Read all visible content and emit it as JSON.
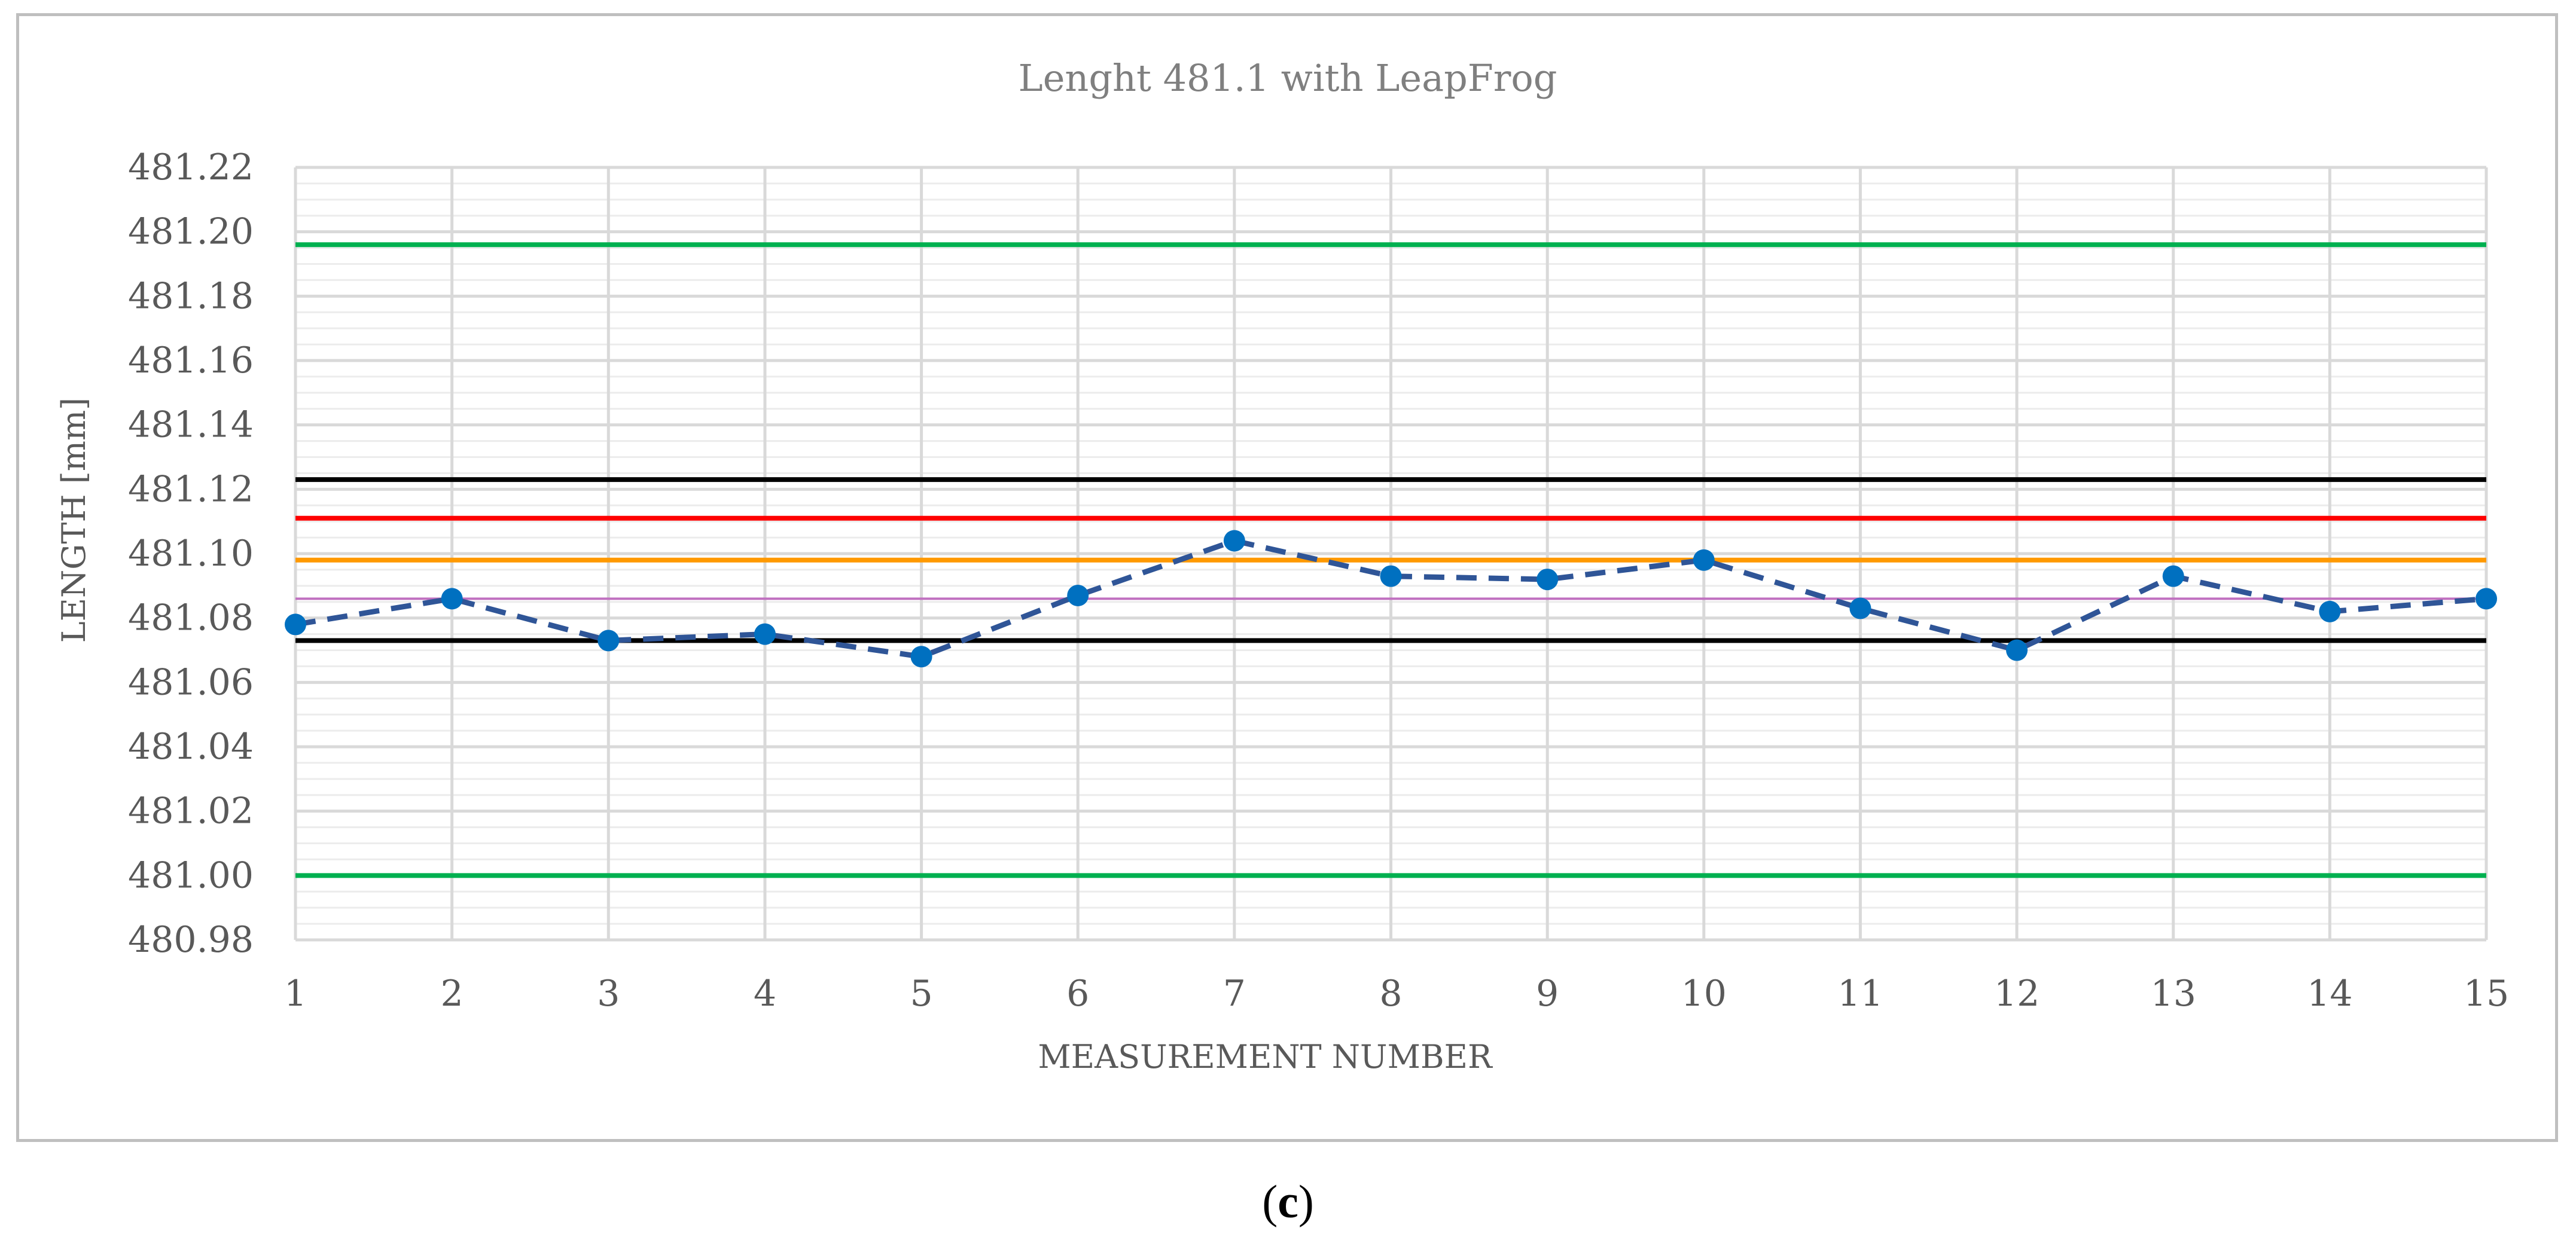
{
  "chart_data": {
    "type": "line",
    "title": "Lenght 481.1 with LeapFrog",
    "xlabel": "MEASUREMENT NUMBER",
    "ylabel": "LENGTH [mm]",
    "x": [
      1,
      2,
      3,
      4,
      5,
      6,
      7,
      8,
      9,
      10,
      11,
      12,
      13,
      14,
      15
    ],
    "x_tick_labels": [
      "1",
      "2",
      "3",
      "4",
      "5",
      "6",
      "7",
      "8",
      "9",
      "10",
      "11",
      "12",
      "13",
      "14",
      "15"
    ],
    "ylim": [
      480.98,
      481.22
    ],
    "y_tick_labels": [
      "481.22",
      "481.20",
      "481.18",
      "481.16",
      "481.14",
      "481.12",
      "481.10",
      "481.08",
      "481.06",
      "481.04",
      "481.02",
      "481.00",
      "480.98"
    ],
    "y_ticks": [
      481.22,
      481.2,
      481.18,
      481.16,
      481.14,
      481.12,
      481.1,
      481.08,
      481.06,
      481.04,
      481.02,
      481.0,
      480.98
    ],
    "grid": true,
    "series": [
      {
        "values": [
          481.078,
          481.086,
          481.073,
          481.075,
          481.068,
          481.087,
          481.104,
          481.093,
          481.092,
          481.098,
          481.083,
          481.07,
          481.093,
          481.082,
          481.086
        ],
        "color": "#0070c0",
        "line_color": "#2f5597",
        "style": "dashed-with-markers"
      }
    ],
    "reference_lines": [
      {
        "value": 481.196,
        "color": "#00b050"
      },
      {
        "value": 481.0,
        "color": "#00b050"
      },
      {
        "value": 481.123,
        "color": "#000000"
      },
      {
        "value": 481.073,
        "color": "#000000"
      },
      {
        "value": 481.111,
        "color": "#ff0000"
      },
      {
        "value": 481.098,
        "color": "#ff9900"
      },
      {
        "value": 481.086,
        "color": "#c070c0"
      }
    ]
  },
  "caption": {
    "open": "(",
    "letter": "c",
    "close": ")"
  }
}
